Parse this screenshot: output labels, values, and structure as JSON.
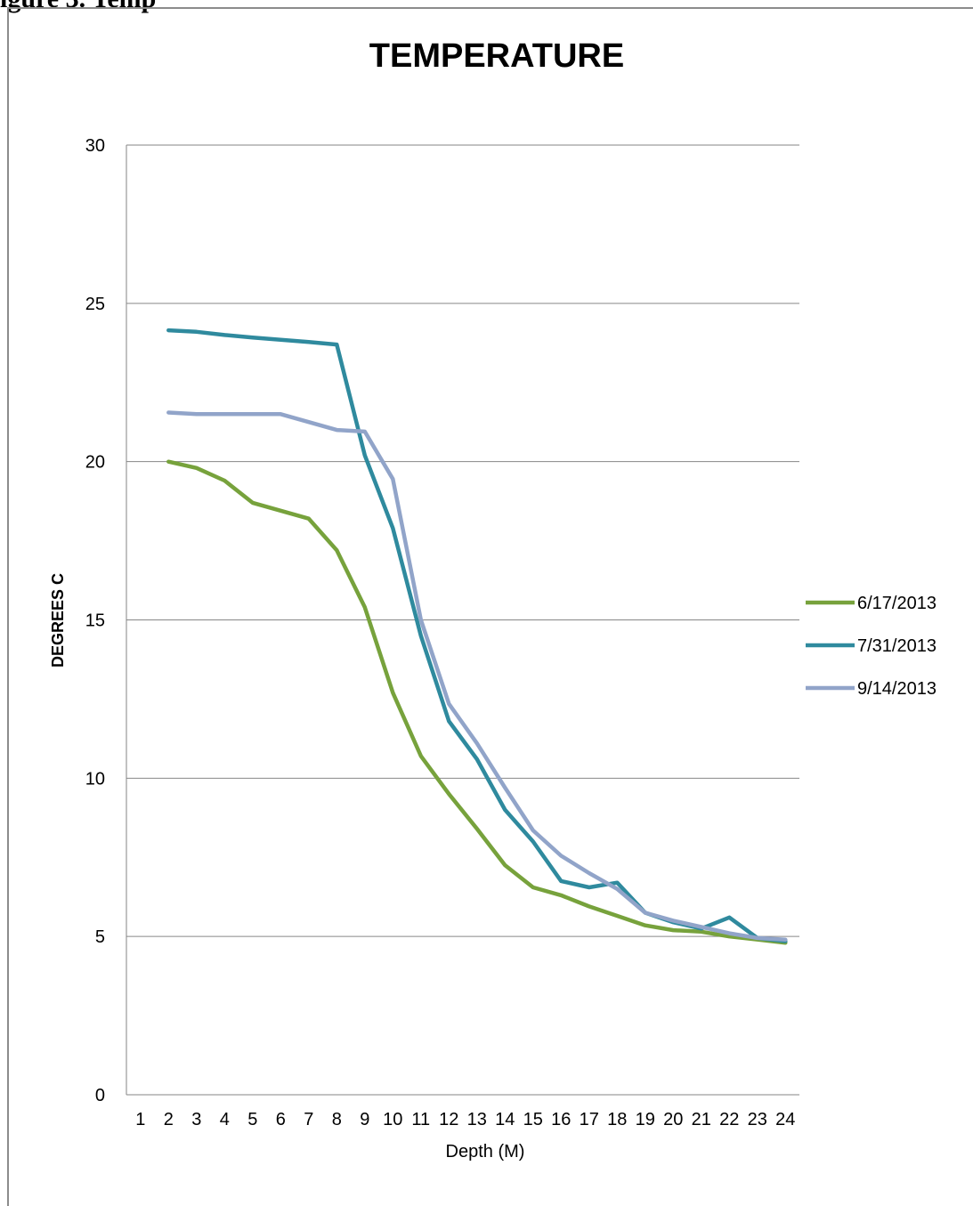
{
  "page_heading": "igure 3. Temp",
  "chart_data": {
    "type": "line",
    "title": "TEMPERATURE",
    "xlabel": "Depth (M)",
    "ylabel": "DEGREES C",
    "categories": [
      1,
      2,
      3,
      4,
      5,
      6,
      7,
      8,
      9,
      10,
      11,
      12,
      13,
      14,
      15,
      16,
      17,
      18,
      19,
      20,
      21,
      22,
      23,
      24
    ],
    "ylim": [
      0,
      30
    ],
    "yticks": [
      0,
      5,
      10,
      15,
      20,
      25,
      30
    ],
    "grid": true,
    "legend_position": "right",
    "series": [
      {
        "name": "6/17/2013",
        "color": "#77a23c",
        "values": [
          null,
          20.0,
          19.8,
          19.4,
          18.7,
          18.45,
          18.2,
          17.2,
          15.4,
          12.7,
          10.7,
          9.5,
          8.4,
          7.25,
          6.55,
          6.3,
          5.95,
          5.65,
          5.35,
          5.2,
          5.15,
          5.0,
          4.9,
          4.8
        ]
      },
      {
        "name": "7/31/2013",
        "color": "#2f8a9e",
        "values": [
          null,
          24.15,
          24.1,
          24.0,
          23.92,
          23.85,
          23.78,
          23.7,
          20.2,
          17.9,
          14.5,
          11.8,
          10.6,
          9.0,
          8.0,
          6.75,
          6.55,
          6.7,
          5.75,
          5.45,
          5.25,
          5.6,
          4.95,
          4.85
        ]
      },
      {
        "name": "9/14/2013",
        "color": "#91a4c9",
        "values": [
          null,
          21.55,
          21.5,
          21.5,
          21.5,
          21.5,
          21.25,
          21.0,
          20.95,
          19.45,
          15.0,
          12.35,
          11.1,
          9.7,
          8.35,
          7.55,
          7.0,
          6.5,
          5.75,
          5.5,
          5.3,
          5.1,
          4.95,
          4.9
        ]
      }
    ]
  }
}
